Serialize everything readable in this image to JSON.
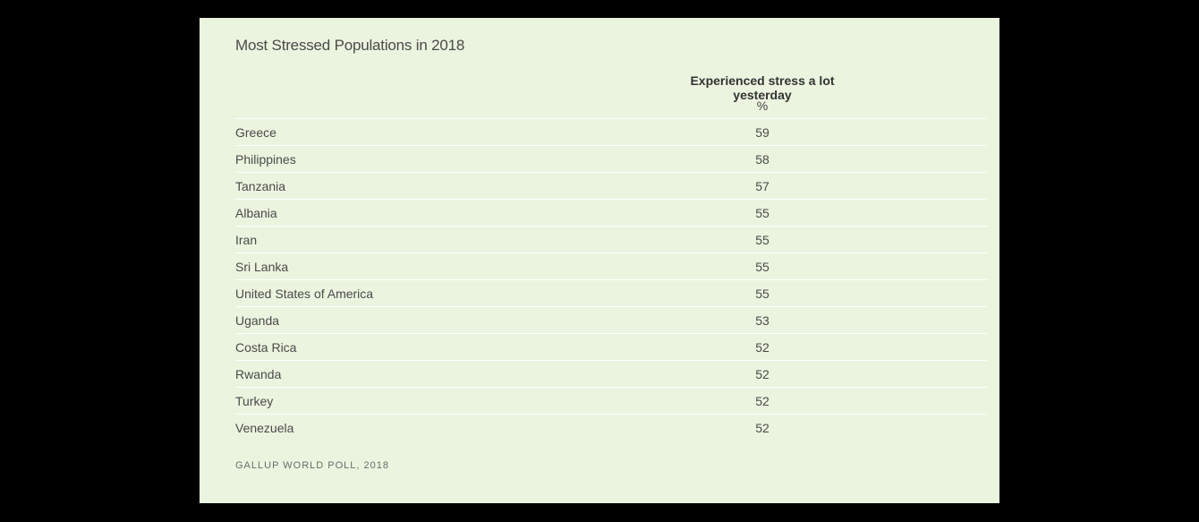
{
  "chart_data": {
    "type": "table",
    "title": "Most Stressed Populations in 2018",
    "column_header": "Experienced stress a lot yesterday",
    "unit_label": "%",
    "categories": [
      "Greece",
      "Philippines",
      "Tanzania",
      "Albania",
      "Iran",
      "Sri Lanka",
      "United States of America",
      "Uganda",
      "Costa Rica",
      "Rwanda",
      "Turkey",
      "Venezuela"
    ],
    "values": [
      59,
      58,
      57,
      55,
      55,
      55,
      55,
      53,
      52,
      52,
      52,
      52
    ],
    "source": "GALLUP WORLD POLL, 2018"
  },
  "colors": {
    "background": "#000000",
    "panel": "#ebf4df",
    "rule": "#ffffff",
    "text": "#4a4a4a"
  }
}
